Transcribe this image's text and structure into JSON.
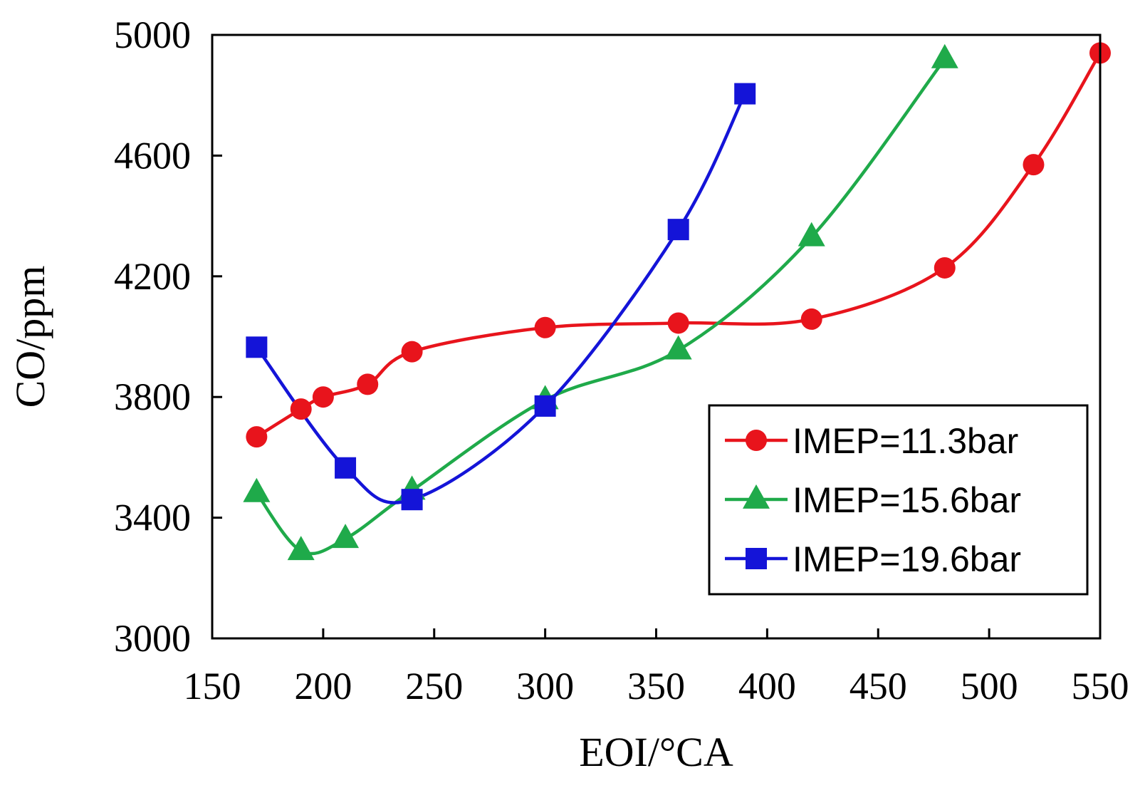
{
  "chart_data": {
    "type": "line",
    "title": "",
    "xlabel": "EOI/°CA",
    "ylabel": "CO/ppm",
    "xlim": [
      150,
      550
    ],
    "ylim": [
      3000,
      5000
    ],
    "x_ticks": [
      150,
      200,
      250,
      300,
      350,
      400,
      450,
      500,
      550
    ],
    "y_ticks": [
      3000,
      3400,
      3800,
      4200,
      4600,
      5000
    ],
    "grid": false,
    "legend_position": "bottom-right",
    "series": [
      {
        "name": "IMEP=11.3bar",
        "color": "#e8141c",
        "marker": "circle",
        "x": [
          170,
          190,
          200,
          220,
          240,
          300,
          360,
          420,
          480,
          520,
          550
        ],
        "y": [
          3668,
          3760,
          3800,
          3842,
          3950,
          4030,
          4045,
          4058,
          4228,
          4570,
          4940
        ]
      },
      {
        "name": "IMEP=15.6bar",
        "color": "#1faa4a",
        "marker": "triangle",
        "x": [
          170,
          190,
          210,
          240,
          300,
          360,
          420,
          480
        ],
        "y": [
          3482,
          3290,
          3330,
          3490,
          3790,
          3955,
          4330,
          4920
        ]
      },
      {
        "name": "IMEP=19.6bar",
        "color": "#1414d8",
        "marker": "square",
        "x": [
          170,
          210,
          240,
          300,
          360,
          390
        ],
        "y": [
          3965,
          3565,
          3460,
          3770,
          4355,
          4805
        ]
      }
    ]
  }
}
